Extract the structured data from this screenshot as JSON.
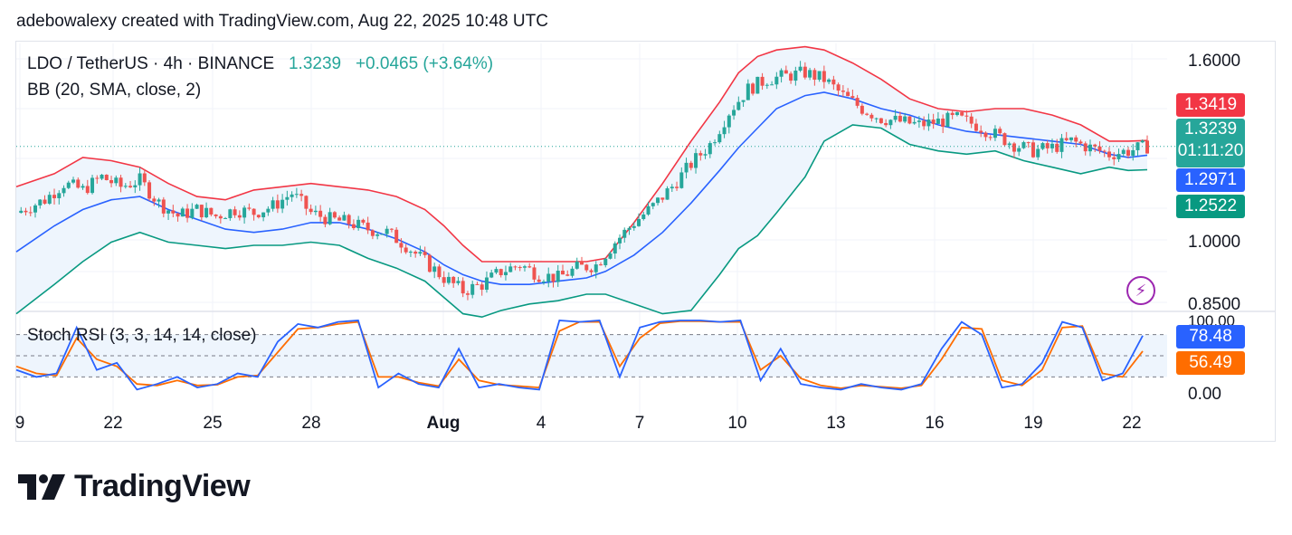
{
  "attribution": "adebowalexy created with TradingView.com, Aug 22, 2025 10:48 UTC",
  "legend": {
    "symbol": "LDO / TetherUS · 4h · BINANCE",
    "last_price": "1.3239",
    "change": "+0.0465 (+3.64%)",
    "bb_label": "BB (20, SMA, close, 2)",
    "stoch_label": "Stoch RSI (3, 3, 14, 14, close)"
  },
  "price_tags": {
    "bb_upper": "1.3419",
    "last_price": "1.3239",
    "countdown": "01:11:20",
    "bb_basis": "1.2971",
    "bb_lower": "1.2522",
    "stoch_k": "78.48",
    "stoch_d": "56.49"
  },
  "colors": {
    "up": "#26a69a",
    "down": "#ef5350",
    "bb_upper": "#f23645",
    "bb_basis": "#2962ff",
    "bb_lower": "#089981",
    "bb_fill": "#eef5fd",
    "stoch_k": "#2962ff",
    "stoch_d": "#ff6d00",
    "tag_last": "#26a69a",
    "tag_upper": "#f23645",
    "tag_basis": "#2962ff",
    "tag_lower": "#089981",
    "tag_d": "#ff6d00"
  },
  "brand": "TradingView",
  "icons": [
    "tradingview-logo-icon",
    "lightning-icon"
  ],
  "chart_data": [
    {
      "type": "candlestick",
      "title": "LDO / TetherUS · 4h · BINANCE",
      "x_ticks": [
        "9",
        "22",
        "25",
        "28",
        "Aug",
        "4",
        "7",
        "10",
        "13",
        "16",
        "19",
        "22"
      ],
      "y_ticks": [
        "1.6000",
        "1.0000",
        "0.8500"
      ],
      "ylim": [
        0.82,
        1.64
      ],
      "last_price": 1.3239,
      "bb": {
        "upper": 1.3419,
        "basis": 1.2971,
        "lower": 1.2522
      },
      "close_path": [
        [
          0,
          1.12
        ],
        [
          6,
          1.16
        ],
        [
          10,
          1.21
        ],
        [
          14,
          1.19
        ],
        [
          18,
          1.23
        ],
        [
          22,
          1.2
        ],
        [
          26,
          1.22
        ],
        [
          30,
          1.15
        ],
        [
          34,
          1.11
        ],
        [
          38,
          1.13
        ],
        [
          42,
          1.11
        ],
        [
          46,
          1.13
        ],
        [
          50,
          1.12
        ],
        [
          54,
          1.14
        ],
        [
          58,
          1.18
        ],
        [
          62,
          1.12
        ],
        [
          66,
          1.1
        ],
        [
          70,
          1.09
        ],
        [
          74,
          1.07
        ],
        [
          78,
          1.06
        ],
        [
          82,
          1.02
        ],
        [
          86,
          0.97
        ],
        [
          90,
          0.92
        ],
        [
          94,
          0.88
        ],
        [
          98,
          0.9
        ],
        [
          102,
          0.94
        ],
        [
          106,
          0.96
        ],
        [
          110,
          0.93
        ],
        [
          114,
          0.92
        ],
        [
          118,
          0.95
        ],
        [
          122,
          0.96
        ],
        [
          126,
          1.03
        ],
        [
          130,
          1.09
        ],
        [
          134,
          1.14
        ],
        [
          138,
          1.2
        ],
        [
          142,
          1.27
        ],
        [
          146,
          1.33
        ],
        [
          150,
          1.43
        ],
        [
          154,
          1.5
        ],
        [
          158,
          1.53
        ],
        [
          162,
          1.54
        ],
        [
          166,
          1.55
        ],
        [
          170,
          1.53
        ],
        [
          174,
          1.48
        ],
        [
          178,
          1.44
        ],
        [
          182,
          1.41
        ],
        [
          186,
          1.4
        ],
        [
          190,
          1.39
        ],
        [
          194,
          1.4
        ],
        [
          198,
          1.41
        ],
        [
          202,
          1.39
        ],
        [
          206,
          1.36
        ],
        [
          210,
          1.33
        ],
        [
          214,
          1.31
        ],
        [
          218,
          1.32
        ],
        [
          222,
          1.34
        ],
        [
          226,
          1.32
        ],
        [
          230,
          1.3
        ],
        [
          234,
          1.31
        ],
        [
          238,
          1.3239
        ]
      ],
      "bb_upper_path": [
        [
          0,
          1.2
        ],
        [
          8,
          1.24
        ],
        [
          14,
          1.29
        ],
        [
          20,
          1.28
        ],
        [
          26,
          1.26
        ],
        [
          32,
          1.21
        ],
        [
          38,
          1.17
        ],
        [
          44,
          1.16
        ],
        [
          50,
          1.19
        ],
        [
          56,
          1.2
        ],
        [
          62,
          1.21
        ],
        [
          68,
          1.2
        ],
        [
          74,
          1.19
        ],
        [
          80,
          1.17
        ],
        [
          86,
          1.13
        ],
        [
          90,
          1.08
        ],
        [
          94,
          1.02
        ],
        [
          98,
          0.97
        ],
        [
          102,
          0.97
        ],
        [
          108,
          0.97
        ],
        [
          114,
          0.97
        ],
        [
          120,
          0.97
        ],
        [
          124,
          0.98
        ],
        [
          130,
          1.09
        ],
        [
          136,
          1.21
        ],
        [
          142,
          1.34
        ],
        [
          148,
          1.46
        ],
        [
          152,
          1.55
        ],
        [
          156,
          1.6
        ],
        [
          160,
          1.62
        ],
        [
          166,
          1.63
        ],
        [
          170,
          1.62
        ],
        [
          176,
          1.58
        ],
        [
          182,
          1.53
        ],
        [
          188,
          1.47
        ],
        [
          194,
          1.44
        ],
        [
          200,
          1.43
        ],
        [
          206,
          1.44
        ],
        [
          212,
          1.44
        ],
        [
          218,
          1.42
        ],
        [
          224,
          1.39
        ],
        [
          230,
          1.34
        ],
        [
          234,
          1.34
        ],
        [
          238,
          1.3419
        ]
      ],
      "bb_basis_path": [
        [
          0,
          1.0
        ],
        [
          8,
          1.08
        ],
        [
          14,
          1.13
        ],
        [
          20,
          1.16
        ],
        [
          26,
          1.17
        ],
        [
          32,
          1.13
        ],
        [
          38,
          1.1
        ],
        [
          44,
          1.07
        ],
        [
          50,
          1.06
        ],
        [
          56,
          1.07
        ],
        [
          62,
          1.09
        ],
        [
          68,
          1.09
        ],
        [
          74,
          1.07
        ],
        [
          80,
          1.04
        ],
        [
          86,
          1.0
        ],
        [
          90,
          0.96
        ],
        [
          94,
          0.93
        ],
        [
          98,
          0.91
        ],
        [
          102,
          0.9
        ],
        [
          108,
          0.9
        ],
        [
          114,
          0.91
        ],
        [
          120,
          0.92
        ],
        [
          124,
          0.94
        ],
        [
          130,
          0.99
        ],
        [
          136,
          1.06
        ],
        [
          142,
          1.15
        ],
        [
          148,
          1.25
        ],
        [
          152,
          1.32
        ],
        [
          156,
          1.38
        ],
        [
          160,
          1.44
        ],
        [
          166,
          1.48
        ],
        [
          170,
          1.49
        ],
        [
          176,
          1.47
        ],
        [
          182,
          1.44
        ],
        [
          188,
          1.42
        ],
        [
          194,
          1.39
        ],
        [
          200,
          1.37
        ],
        [
          206,
          1.36
        ],
        [
          212,
          1.35
        ],
        [
          218,
          1.34
        ],
        [
          224,
          1.33
        ],
        [
          230,
          1.3
        ],
        [
          234,
          1.29
        ],
        [
          238,
          1.2971
        ]
      ],
      "bb_lower_path": [
        [
          0,
          0.81
        ],
        [
          8,
          0.9
        ],
        [
          14,
          0.97
        ],
        [
          20,
          1.03
        ],
        [
          26,
          1.06
        ],
        [
          32,
          1.03
        ],
        [
          38,
          1.02
        ],
        [
          44,
          1.01
        ],
        [
          50,
          1.02
        ],
        [
          56,
          1.02
        ],
        [
          62,
          1.03
        ],
        [
          68,
          1.02
        ],
        [
          74,
          0.98
        ],
        [
          80,
          0.95
        ],
        [
          86,
          0.91
        ],
        [
          90,
          0.86
        ],
        [
          94,
          0.81
        ],
        [
          98,
          0.8
        ],
        [
          102,
          0.82
        ],
        [
          108,
          0.84
        ],
        [
          114,
          0.85
        ],
        [
          120,
          0.87
        ],
        [
          124,
          0.87
        ],
        [
          130,
          0.84
        ],
        [
          136,
          0.81
        ],
        [
          142,
          0.82
        ],
        [
          148,
          0.93
        ],
        [
          152,
          1.01
        ],
        [
          156,
          1.05
        ],
        [
          160,
          1.12
        ],
        [
          166,
          1.23
        ],
        [
          170,
          1.34
        ],
        [
          176,
          1.39
        ],
        [
          182,
          1.38
        ],
        [
          188,
          1.33
        ],
        [
          194,
          1.31
        ],
        [
          200,
          1.3
        ],
        [
          206,
          1.31
        ],
        [
          212,
          1.28
        ],
        [
          218,
          1.26
        ],
        [
          224,
          1.24
        ],
        [
          230,
          1.26
        ],
        [
          234,
          1.25
        ],
        [
          238,
          1.2522
        ]
      ]
    },
    {
      "type": "line",
      "title": "Stoch RSI (3, 3, 14, 14, close)",
      "y_ticks": [
        "100.00",
        "0.00"
      ],
      "ylim": [
        0,
        100
      ],
      "bands": [
        80,
        20
      ],
      "series": [
        {
          "name": "%K",
          "last": 78.48,
          "values": [
            [
              0,
              30
            ],
            [
              4,
              20
            ],
            [
              8,
              25
            ],
            [
              12,
              90
            ],
            [
              16,
              30
            ],
            [
              20,
              40
            ],
            [
              24,
              2
            ],
            [
              28,
              10
            ],
            [
              32,
              20
            ],
            [
              36,
              5
            ],
            [
              40,
              10
            ],
            [
              44,
              25
            ],
            [
              48,
              20
            ],
            [
              52,
              70
            ],
            [
              56,
              95
            ],
            [
              60,
              90
            ],
            [
              64,
              98
            ],
            [
              68,
              100
            ],
            [
              72,
              5
            ],
            [
              76,
              25
            ],
            [
              80,
              10
            ],
            [
              84,
              5
            ],
            [
              88,
              60
            ],
            [
              92,
              5
            ],
            [
              96,
              10
            ],
            [
              100,
              5
            ],
            [
              104,
              2
            ],
            [
              108,
              100
            ],
            [
              112,
              98
            ],
            [
              116,
              100
            ],
            [
              120,
              20
            ],
            [
              124,
              90
            ],
            [
              128,
              98
            ],
            [
              132,
              100
            ],
            [
              136,
              100
            ],
            [
              140,
              98
            ],
            [
              144,
              100
            ],
            [
              148,
              15
            ],
            [
              152,
              60
            ],
            [
              156,
              10
            ],
            [
              160,
              5
            ],
            [
              164,
              2
            ],
            [
              168,
              10
            ],
            [
              172,
              5
            ],
            [
              176,
              2
            ],
            [
              180,
              10
            ],
            [
              184,
              60
            ],
            [
              188,
              98
            ],
            [
              192,
              80
            ],
            [
              196,
              5
            ],
            [
              200,
              10
            ],
            [
              204,
              40
            ],
            [
              208,
              98
            ],
            [
              212,
              90
            ],
            [
              216,
              15
            ],
            [
              220,
              25
            ],
            [
              224,
              78.48
            ]
          ]
        },
        {
          "name": "%D",
          "last": 56.49,
          "values": [
            [
              0,
              35
            ],
            [
              4,
              25
            ],
            [
              8,
              22
            ],
            [
              12,
              75
            ],
            [
              16,
              45
            ],
            [
              20,
              35
            ],
            [
              24,
              10
            ],
            [
              28,
              8
            ],
            [
              32,
              15
            ],
            [
              36,
              8
            ],
            [
              40,
              9
            ],
            [
              44,
              20
            ],
            [
              48,
              22
            ],
            [
              52,
              55
            ],
            [
              56,
              88
            ],
            [
              60,
              90
            ],
            [
              64,
              95
            ],
            [
              68,
              98
            ],
            [
              72,
              20
            ],
            [
              76,
              20
            ],
            [
              80,
              12
            ],
            [
              84,
              7
            ],
            [
              88,
              45
            ],
            [
              92,
              15
            ],
            [
              96,
              9
            ],
            [
              100,
              7
            ],
            [
              104,
              5
            ],
            [
              108,
              85
            ],
            [
              112,
              98
            ],
            [
              116,
              98
            ],
            [
              120,
              35
            ],
            [
              124,
              75
            ],
            [
              128,
              96
            ],
            [
              132,
              99
            ],
            [
              136,
              99
            ],
            [
              140,
              98
            ],
            [
              144,
              98
            ],
            [
              148,
              30
            ],
            [
              152,
              50
            ],
            [
              156,
              18
            ],
            [
              160,
              8
            ],
            [
              164,
              4
            ],
            [
              168,
              8
            ],
            [
              172,
              6
            ],
            [
              176,
              4
            ],
            [
              180,
              8
            ],
            [
              184,
              45
            ],
            [
              188,
              90
            ],
            [
              192,
              88
            ],
            [
              196,
              15
            ],
            [
              200,
              8
            ],
            [
              204,
              30
            ],
            [
              208,
              90
            ],
            [
              212,
              92
            ],
            [
              216,
              25
            ],
            [
              220,
              20
            ],
            [
              224,
              56.49
            ]
          ]
        }
      ]
    }
  ]
}
